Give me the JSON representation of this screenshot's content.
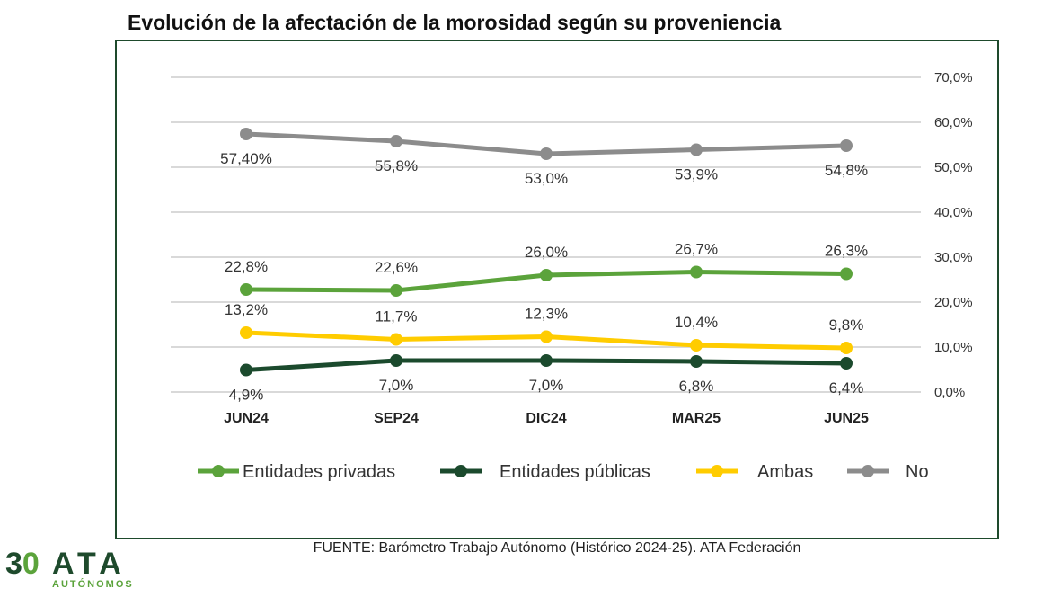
{
  "chart_data": {
    "type": "line",
    "title": "Evolución de la afectación de la morosidad según su proveniencia",
    "categories": [
      "JUN24",
      "SEP24",
      "DIC24",
      "MAR25",
      "JUN25"
    ],
    "ylim": [
      0,
      70
    ],
    "yticks": [
      "0,0%",
      "10,0%",
      "20,0%",
      "30,0%",
      "40,0%",
      "50,0%",
      "60,0%",
      "70,0%"
    ],
    "yaxis_position": "right",
    "grid": true,
    "legend_position": "bottom",
    "series": [
      {
        "name": "Entidades privadas",
        "color": "#5ba33b",
        "values": [
          22.8,
          22.6,
          26.0,
          26.7,
          26.3
        ],
        "labels": [
          "22,8%",
          "22,6%",
          "26,0%",
          "26,7%",
          "26,3%"
        ],
        "label_pos": "above"
      },
      {
        "name": "Entidades públicas",
        "color": "#1b4a2d",
        "values": [
          4.9,
          7.0,
          7.0,
          6.8,
          6.4
        ],
        "labels": [
          "4,9%",
          "7,0%",
          "7,0%",
          "6,8%",
          "6,4%"
        ],
        "label_pos": "below"
      },
      {
        "name": "Ambas",
        "color": "#ffcc00",
        "values": [
          13.2,
          11.7,
          12.3,
          10.4,
          9.8
        ],
        "labels": [
          "13,2%",
          "11,7%",
          "12,3%",
          "10,4%",
          "9,8%"
        ],
        "label_pos": "above"
      },
      {
        "name": "No",
        "color": "#8c8c8c",
        "values": [
          57.4,
          55.8,
          53.0,
          53.9,
          54.8
        ],
        "labels": [
          "57,40%",
          "55,8%",
          "53,0%",
          "53,9%",
          "54,8%"
        ],
        "label_pos": "below"
      }
    ]
  },
  "source": "FUENTE: Barómetro Trabajo Autónomo (Histórico 2024-25). ATA Federación",
  "logo": {
    "number": "30",
    "name": "ATA",
    "subtitle": "AUTÓNOMOS"
  }
}
